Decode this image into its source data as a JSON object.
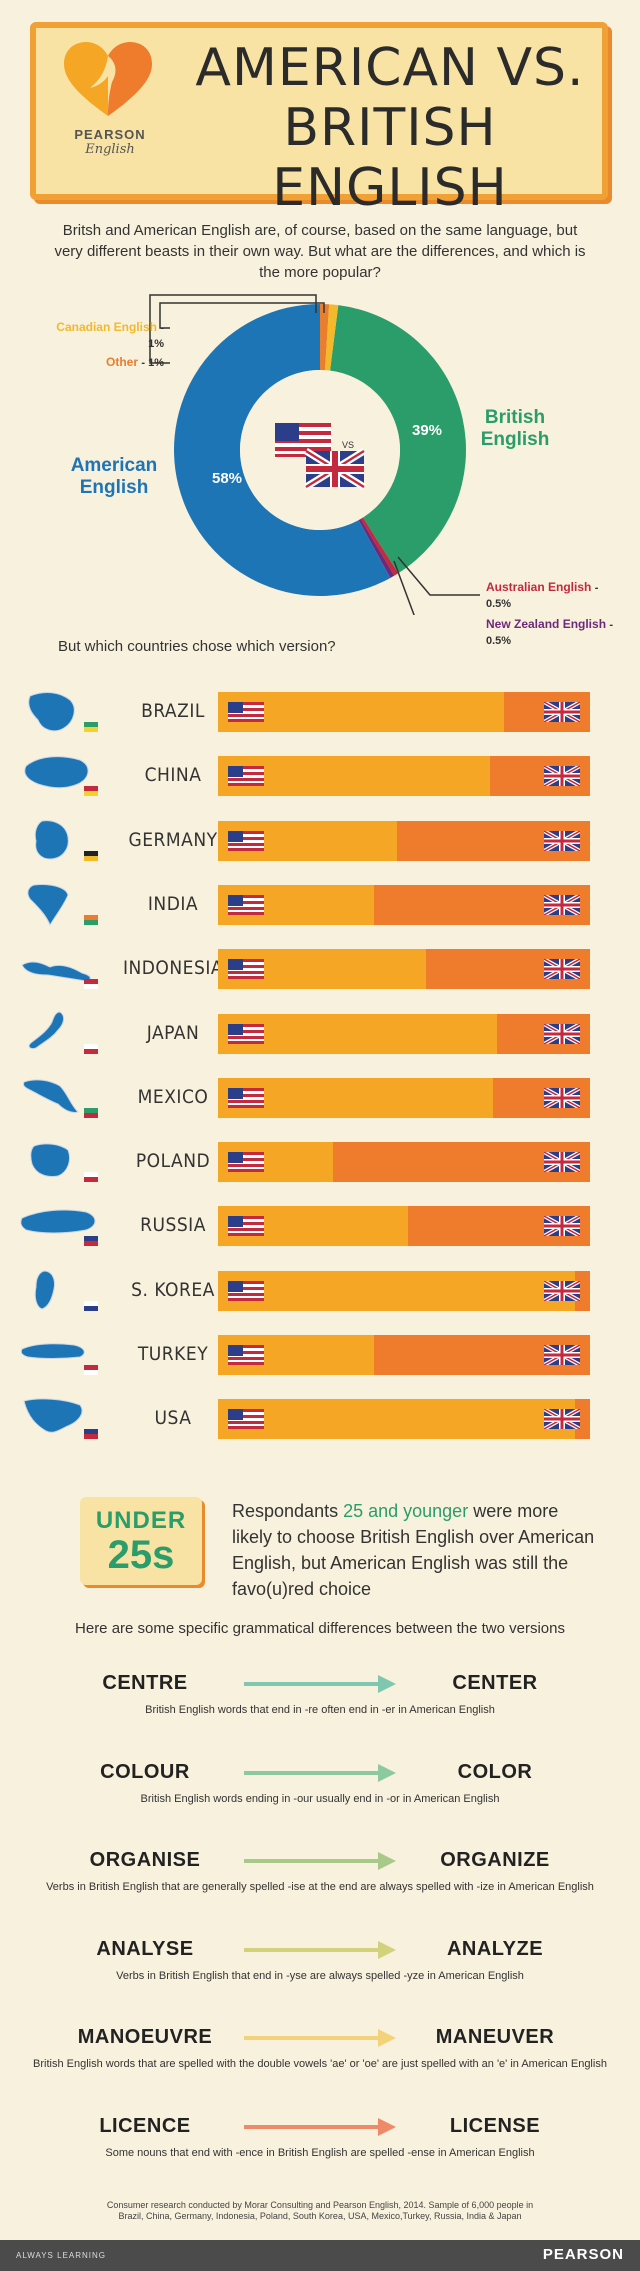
{
  "logo": {
    "brand": "PEARSON",
    "sub": "English"
  },
  "title_line1": "AMERICAN VS.",
  "title_line2": "BRITISH ENGLISH",
  "intro": "Britsh and American English are, of course, based on the same language, but very different beasts in their own way. But what are the differences, and which is the more popular?",
  "donut": {
    "vs_label": "VS",
    "labels": {
      "american": "American English",
      "british": "British English",
      "canadian": "Canadian English",
      "other": "Other",
      "australian": "Australian English",
      "newzealand": "New Zealand English"
    },
    "pct_text": {
      "american": "58%",
      "british": "39%",
      "canadian": "- 1%",
      "other": "- 1%",
      "australian": "- 0.5%",
      "newzealand": "- 0.5%"
    }
  },
  "chart_data": [
    {
      "type": "pie",
      "categories": [
        "American English",
        "British English",
        "Australian English",
        "New Zealand English",
        "Canadian English",
        "Other"
      ],
      "values": [
        58,
        39,
        0.5,
        0.5,
        1,
        1
      ],
      "colors": [
        "#1e75b6",
        "#2a9d6a",
        "#c4293d",
        "#6d2a7c",
        "#f2b92b",
        "#e97e2e"
      ]
    },
    {
      "type": "bar",
      "stacked": true,
      "orientation": "horizontal",
      "title": "But which countries chose which version?",
      "categories": [
        "BRAZIL",
        "CHINA",
        "GERMANY",
        "INDIA",
        "INDONESIA",
        "JAPAN",
        "MEXICO",
        "POLAND",
        "RUSSIA",
        "S. KOREA",
        "TURKEY",
        "USA"
      ],
      "series": [
        {
          "values": [
            77,
            73,
            48,
            42,
            56,
            75,
            74,
            31,
            51,
            96,
            42,
            96
          ],
          "color": "#f5a624"
        },
        {
          "values": [
            23,
            27,
            52,
            58,
            44,
            25,
            26,
            69,
            49,
            4,
            58,
            4
          ],
          "color": "#ef7b2c"
        }
      ],
      "xlim": [
        0,
        100
      ]
    }
  ],
  "countries_heading": "But which countries chose which version?",
  "under25": {
    "top": "UNDER",
    "big": "25s",
    "text_before": "Respondants ",
    "highlight": "25 and younger",
    "text_after": " were more likely to choose British English over American English, but American English was still the favo(u)red choice"
  },
  "grammar_intro": "Here are some specific grammatical differences between the two versions",
  "grammar": [
    {
      "british": "CENTRE",
      "american": "CENTER",
      "desc": "British English words that end in -re often end in -er in American English",
      "color": "#7fc7b0"
    },
    {
      "british": "COLOUR",
      "american": "COLOR",
      "desc": "British English words ending in -our usually end in -or in American English",
      "color": "#8cc8a0"
    },
    {
      "british": "ORGANISE",
      "american": "ORGANIZE",
      "desc": "Verbs in British English that are generally spelled -ise at the end are always spelled with -ize in American English",
      "color": "#a9c98a"
    },
    {
      "british": "ANALYSE",
      "american": "ANALYZE",
      "desc": "Verbs in British English that end in -yse are always spelled -yze in American English",
      "color": "#d2d27c"
    },
    {
      "british": "MANOEUVRE",
      "american": "MANEUVER",
      "desc": "British English words that are spelled with the double vowels 'ae' or 'oe' are just spelled with an 'e' in American English",
      "color": "#f3d27a"
    },
    {
      "british": "LICENCE",
      "american": "LICENSE",
      "desc": "Some nouns that end with -ence in British English are spelled -ense in American English",
      "color": "#ee8a6a"
    }
  ],
  "footer": {
    "note": "Consumer research conducted by Morar Consulting and Pearson English, 2014. Sample of 6,000 people in Brazil, China, Germany, Indonesia, Poland, South Korea, USA, Mexico,Turkey, Russia, India & Japan",
    "left": "ALWAYS LEARNING",
    "right": "PEARSON"
  }
}
